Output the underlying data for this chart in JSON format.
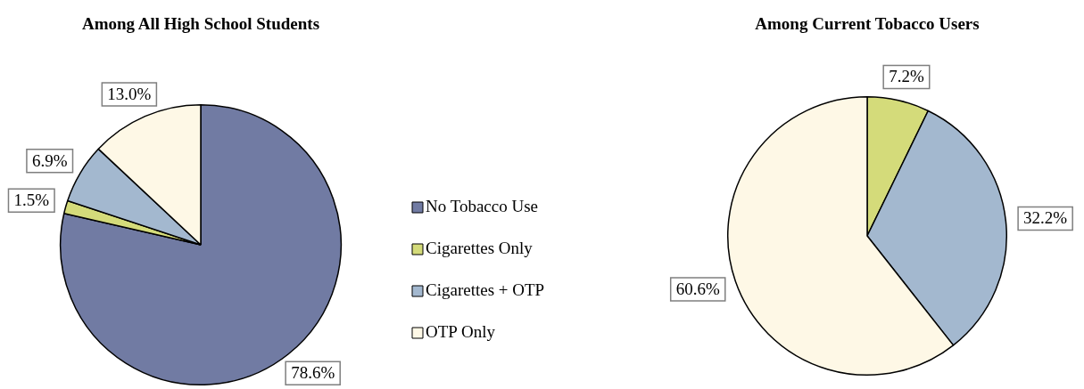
{
  "chart_data": [
    {
      "type": "pie",
      "title": "Among All High School Students",
      "categories": [
        "No Tobacco Use",
        "Cigarettes Only",
        "Cigarettes + OTP",
        "OTP Only"
      ],
      "values": [
        78.6,
        1.5,
        6.9,
        13.0
      ],
      "value_labels": [
        "78.6%",
        "1.5%",
        "6.9%",
        "13.0%"
      ],
      "colors": [
        "#717ba3",
        "#d4db7a",
        "#a3b8cf",
        "#fef8e6"
      ],
      "legend": "right"
    },
    {
      "type": "pie",
      "title": "Among Current Tobacco Users",
      "categories": [
        null,
        null,
        null
      ],
      "values": [
        7.2,
        32.2,
        60.6
      ],
      "value_labels": [
        "7.2%",
        "32.2%",
        "60.6%"
      ],
      "colors": [
        "#d4db7a",
        "#a3b8cf",
        "#fef8e6"
      ],
      "legend": false
    }
  ]
}
